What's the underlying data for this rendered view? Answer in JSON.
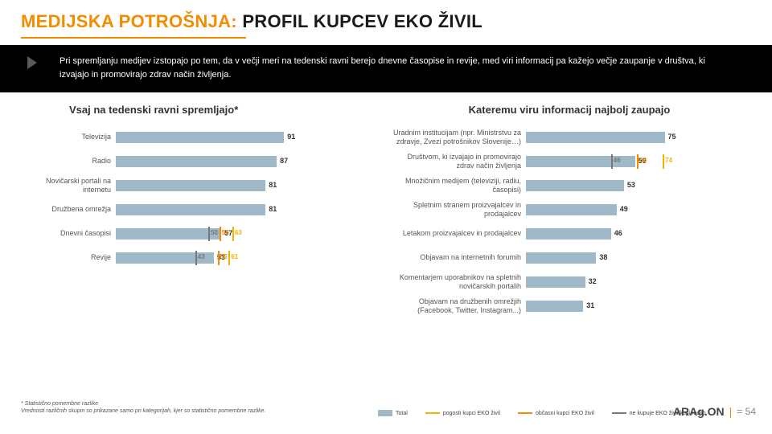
{
  "colors": {
    "accent": "#f28c00",
    "bar_total": "#9fb9c9",
    "tick_yellow": "#f2b300",
    "tick_grey": "#777777",
    "tick_orange": "#f28c00",
    "bg": "#ffffff"
  },
  "title_accent": "MEDIJSKA POTROŠNJA:",
  "title_rest": " PROFIL KUPCEV EKO ŽIVIL",
  "intro": "Pri spremljanju medijev izstopajo po tem, da v večji meri na tedenski ravni berejo dnevne časopise in revije, med viri informacij pa kažejo večje zaupanje v društva, ki izvajajo in promovirajo zdrav način življenja.",
  "left_chart": {
    "title": "Vsaj na tedenski ravni spremljajo*",
    "scale_max": 100,
    "rows": [
      {
        "label": "Televizija",
        "total": 91
      },
      {
        "label": "Radio",
        "total": 87
      },
      {
        "label": "Novičarski portali na internetu",
        "total": 81
      },
      {
        "label": "Družbena omrežja",
        "total": 81
      },
      {
        "label": "Dnevni časopisi",
        "total": 57,
        "extra": [
          {
            "v": 50,
            "kind": "grey"
          },
          {
            "v": 56,
            "kind": "orange"
          },
          {
            "v": 63,
            "kind": "yellow"
          }
        ]
      },
      {
        "label": "Revije",
        "total": 53,
        "extra": [
          {
            "v": 43,
            "kind": "grey"
          },
          {
            "v": 55,
            "kind": "orange"
          },
          {
            "v": 61,
            "kind": "yellow"
          }
        ]
      }
    ]
  },
  "right_chart": {
    "title": "Kateremu viru informacij najbolj zaupajo",
    "scale_max": 100,
    "rows": [
      {
        "label": "Uradnim institucijam (npr. Ministrstvu za zdravje, Zvezi potrošnikov Slovenije…)",
        "total": 75
      },
      {
        "label": "Društvom, ki izvajajo in promovirajo zdrav način življenja",
        "total": 59,
        "extra": [
          {
            "v": 46,
            "kind": "grey"
          },
          {
            "v": 60,
            "kind": "orange"
          },
          {
            "v": 74,
            "kind": "yellow"
          }
        ]
      },
      {
        "label": "Množičnim medijem (televiziji, radiu, časopisi)",
        "total": 53
      },
      {
        "label": "Spletnim stranem proizvajalcev in prodajalcev",
        "total": 49
      },
      {
        "label": "Letakom proizvajalcev in prodajalcev",
        "total": 46
      },
      {
        "label": "Objavam na internetnih forumih",
        "total": 38
      },
      {
        "label": "Komentarjem uporabnikov na spletnih novičarskih portalih",
        "total": 32
      },
      {
        "label": "Objavam na družbenih omrežjih (Facebook, Twitter, Instagram...)",
        "total": 31
      }
    ]
  },
  "footnote1": "* Statistično pomembne razlike",
  "footnote2": "Vrednosti različnih skupin so prikazane samo pri kategorijah, kjer so statistično pomembne razlike.",
  "legend": [
    {
      "label": "Total",
      "type": "bar",
      "color": "#9fb9c9"
    },
    {
      "label": "pogosti kupci EKO živil",
      "type": "line",
      "color": "#f2b300"
    },
    {
      "label": "občasni kupci EKO živil",
      "type": "line",
      "color": "#f28c00"
    },
    {
      "label": "ne kupuje EKO živil/kupi redko",
      "type": "line",
      "color": "#777777"
    }
  ],
  "brand": "ARAg.ON",
  "page_sep": "|",
  "page_num": "54"
}
